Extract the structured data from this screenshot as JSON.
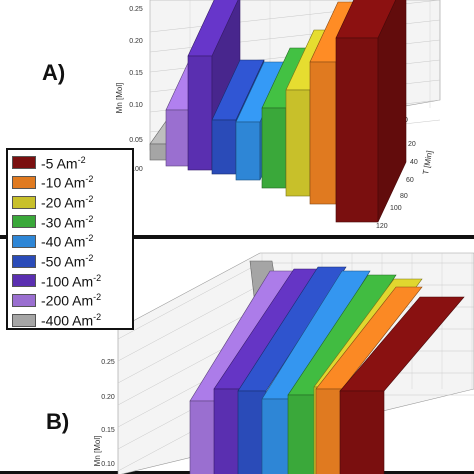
{
  "chart_data": [
    {
      "type": "area",
      "panel_label": "A)",
      "ylabel": "Mn [Mol]",
      "xlabel": "T [Min]",
      "y_ticks": [
        "0.00",
        "0.05",
        "0.10",
        "0.15",
        "0.20",
        "0.25"
      ],
      "x_ticks": [
        "0",
        "20",
        "40",
        "60",
        "80",
        "100",
        "120"
      ],
      "ylim": [
        0,
        0.3
      ],
      "grid": true
    },
    {
      "type": "area",
      "panel_label": "B)",
      "ylabel": "Mn [Mol]",
      "y_ticks": [
        "0.10",
        "0.15",
        "0.20",
        "0.25",
        "0.30"
      ],
      "ylim": [
        0.1,
        0.3
      ],
      "grid": true
    }
  ],
  "legend": {
    "items": [
      {
        "value": "-5",
        "unit": "Am",
        "exp": "-2",
        "color": "#7a0f0f"
      },
      {
        "value": "-10",
        "unit": "Am",
        "exp": "-2",
        "color": "#e07a20"
      },
      {
        "value": "-20",
        "unit": "Am",
        "exp": "-2",
        "color": "#c8c02a"
      },
      {
        "value": "-30",
        "unit": "Am",
        "exp": "-2",
        "color": "#3aa83a"
      },
      {
        "value": "-40",
        "unit": "Am",
        "exp": "-2",
        "color": "#2e86d6"
      },
      {
        "value": "-50",
        "unit": "Am",
        "exp": "-2",
        "color": "#2a4bb8"
      },
      {
        "value": "-100",
        "unit": "Am",
        "exp": "-2",
        "color": "#5a2fb0"
      },
      {
        "value": "-200",
        "unit": "Am",
        "exp": "-2",
        "color": "#9a6fd0"
      },
      {
        "value": "-400",
        "unit": "Am",
        "exp": "-2",
        "color": "#a5a5a5"
      }
    ]
  }
}
